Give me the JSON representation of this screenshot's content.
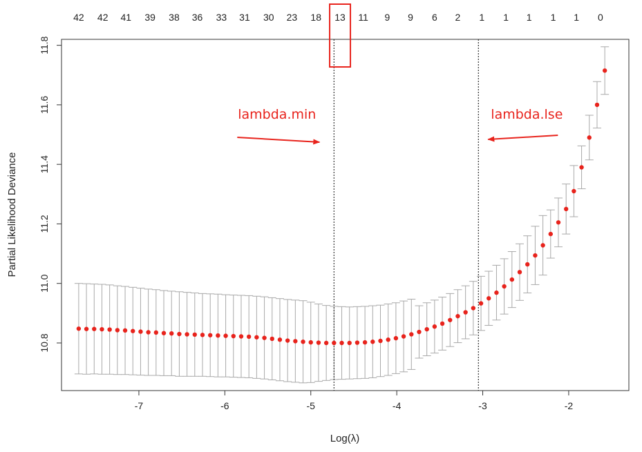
{
  "chart_data": {
    "type": "scatter",
    "title": "",
    "xlabel": "Log(λ)",
    "ylabel": "Partial Likelihood Deviance",
    "xlim": [
      -7.9,
      -1.3
    ],
    "ylim": [
      10.64,
      11.82
    ],
    "xticks": [
      -7,
      -6,
      -5,
      -4,
      -3,
      -2
    ],
    "yticks": [
      10.8,
      11.0,
      11.2,
      11.4,
      11.6,
      11.8
    ],
    "top_axis": {
      "labels": [
        "42",
        "42",
        "41",
        "39",
        "38",
        "36",
        "33",
        "31",
        "30",
        "23",
        "18",
        "13",
        "11",
        "9",
        "9",
        "6",
        "2",
        "1",
        "1",
        "1",
        "1",
        "1",
        "0"
      ],
      "positions": [
        -7.7,
        -7.42,
        -7.15,
        -6.87,
        -6.59,
        -6.32,
        -6.04,
        -5.77,
        -5.49,
        -5.22,
        -4.94,
        -4.66,
        -4.39,
        -4.11,
        -3.84,
        -3.56,
        -3.29,
        -3.01,
        -2.73,
        -2.46,
        -2.18,
        -1.91,
        -1.63
      ],
      "highlighted": "13"
    },
    "x": [
      -7.7,
      -7.61,
      -7.52,
      -7.43,
      -7.34,
      -7.25,
      -7.16,
      -7.07,
      -6.98,
      -6.89,
      -6.8,
      -6.71,
      -6.62,
      -6.53,
      -6.44,
      -6.35,
      -6.26,
      -6.17,
      -6.08,
      -5.99,
      -5.9,
      -5.81,
      -5.72,
      -5.63,
      -5.54,
      -5.45,
      -5.36,
      -5.27,
      -5.18,
      -5.09,
      -5.0,
      -4.91,
      -4.82,
      -4.73,
      -4.64,
      -4.55,
      -4.46,
      -4.37,
      -4.28,
      -4.19,
      -4.1,
      -4.01,
      -3.92,
      -3.83,
      -3.74,
      -3.65,
      -3.56,
      -3.47,
      -3.38,
      -3.29,
      -3.2,
      -3.11,
      -3.02,
      -2.93,
      -2.84,
      -2.75,
      -2.66,
      -2.57,
      -2.48,
      -2.39,
      -2.3,
      -2.21,
      -2.12,
      -2.03,
      -1.94,
      -1.85,
      -1.76,
      -1.67,
      -1.58
    ],
    "y": [
      10.848,
      10.847,
      10.847,
      10.846,
      10.845,
      10.843,
      10.842,
      10.84,
      10.838,
      10.836,
      10.835,
      10.833,
      10.832,
      10.83,
      10.829,
      10.828,
      10.827,
      10.826,
      10.825,
      10.824,
      10.823,
      10.822,
      10.821,
      10.819,
      10.817,
      10.814,
      10.811,
      10.808,
      10.806,
      10.804,
      10.802,
      10.801,
      10.8,
      10.8,
      10.8,
      10.8,
      10.801,
      10.802,
      10.804,
      10.807,
      10.811,
      10.816,
      10.822,
      10.829,
      10.837,
      10.846,
      10.855,
      10.865,
      10.877,
      10.89,
      10.903,
      10.917,
      10.933,
      10.95,
      10.969,
      10.99,
      11.013,
      11.038,
      11.064,
      11.094,
      11.128,
      11.166,
      11.205,
      11.25,
      11.31,
      11.39,
      11.49,
      11.6,
      11.715
    ],
    "error_half_width": [
      0.152,
      0.152,
      0.151,
      0.151,
      0.15,
      0.149,
      0.148,
      0.147,
      0.146,
      0.145,
      0.144,
      0.143,
      0.142,
      0.142,
      0.141,
      0.14,
      0.139,
      0.139,
      0.139,
      0.138,
      0.138,
      0.138,
      0.138,
      0.138,
      0.138,
      0.138,
      0.138,
      0.138,
      0.138,
      0.138,
      0.135,
      0.13,
      0.126,
      0.123,
      0.122,
      0.121,
      0.121,
      0.121,
      0.121,
      0.12,
      0.12,
      0.119,
      0.119,
      0.118,
      0.088,
      0.089,
      0.089,
      0.089,
      0.089,
      0.089,
      0.089,
      0.09,
      0.091,
      0.091,
      0.092,
      0.093,
      0.094,
      0.095,
      0.096,
      0.098,
      0.1,
      0.081,
      0.082,
      0.084,
      0.086,
      0.072,
      0.075,
      0.078,
      0.08
    ],
    "vlines": [
      {
        "label": "lambda.min",
        "x": -4.73
      },
      {
        "label": "lambda.lse",
        "x": -3.05
      }
    ],
    "grid": false,
    "point_color": "#e8231c",
    "error_bar_color": "#a8a8a8",
    "annotation_color": "#e8231c"
  }
}
